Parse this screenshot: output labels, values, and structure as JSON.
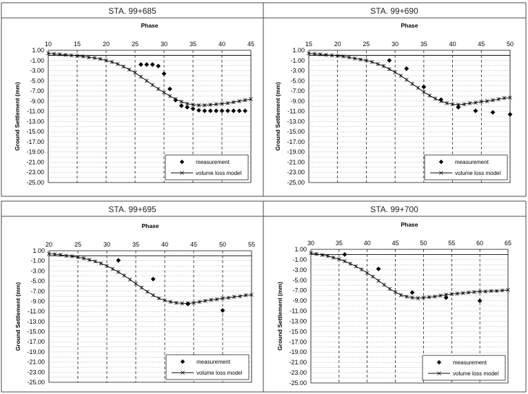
{
  "chart_data": [
    {
      "type": "scatter",
      "title": "STA. 99+685",
      "xlabel": "Phase",
      "ylabel": "Ground Settlement (mm)",
      "xlim": [
        10,
        45
      ],
      "ylim": [
        -25,
        1
      ],
      "xticks": [
        "10",
        "15",
        "20",
        "25",
        "30",
        "35",
        "40",
        "45"
      ],
      "yticks": [
        "1.00",
        "-1.00",
        "-3.00",
        "-5.00",
        "-7.00",
        "-9.00",
        "-11.00",
        "-13.00",
        "-15.00",
        "-17.00",
        "-19.00",
        "-21.00",
        "-23.00",
        "-25.00"
      ],
      "grid": "on",
      "legend_placement": "bottom-right",
      "series": [
        {
          "name": "measurement",
          "marker": "diamond",
          "points": [
            [
              26,
              -1.8
            ],
            [
              27,
              -1.8
            ],
            [
              28,
              -1.8
            ],
            [
              29,
              -2.1
            ],
            [
              30,
              -3.6
            ],
            [
              31,
              -6.6
            ],
            [
              32,
              -8.8
            ],
            [
              33,
              -9.9
            ],
            [
              34,
              -10.2
            ],
            [
              35,
              -10.5
            ],
            [
              36,
              -10.8
            ],
            [
              37,
              -10.9
            ],
            [
              38,
              -10.9
            ],
            [
              39,
              -10.9
            ],
            [
              40,
              -10.9
            ],
            [
              41,
              -10.9
            ],
            [
              42,
              -10.9
            ],
            [
              43,
              -10.9
            ],
            [
              44,
              -10.9
            ]
          ]
        },
        {
          "name": "volume loss model",
          "marker": "star",
          "line": true,
          "points": [
            [
              10,
              0.4
            ],
            [
              11,
              0.3
            ],
            [
              12,
              0.2
            ],
            [
              13,
              0.1
            ],
            [
              14,
              0.0
            ],
            [
              15,
              -0.1
            ],
            [
              16,
              -0.2
            ],
            [
              17,
              -0.4
            ],
            [
              18,
              -0.5
            ],
            [
              19,
              -0.7
            ],
            [
              20,
              -1.0
            ],
            [
              21,
              -1.3
            ],
            [
              22,
              -1.7
            ],
            [
              23,
              -2.2
            ],
            [
              24,
              -2.8
            ],
            [
              25,
              -3.4
            ],
            [
              26,
              -4.2
            ],
            [
              27,
              -5.0
            ],
            [
              28,
              -5.8
            ],
            [
              29,
              -6.6
            ],
            [
              30,
              -7.3
            ],
            [
              31,
              -8.0
            ],
            [
              32,
              -8.6
            ],
            [
              33,
              -9.1
            ],
            [
              34,
              -9.5
            ],
            [
              35,
              -9.7
            ],
            [
              36,
              -9.8
            ],
            [
              37,
              -9.8
            ],
            [
              38,
              -9.7
            ],
            [
              39,
              -9.6
            ],
            [
              40,
              -9.5
            ],
            [
              41,
              -9.4
            ],
            [
              42,
              -9.2
            ],
            [
              43,
              -9.0
            ],
            [
              44,
              -8.8
            ],
            [
              45,
              -8.6
            ]
          ]
        }
      ]
    },
    {
      "type": "scatter",
      "title": "STA. 99+690",
      "xlabel": "Phase",
      "ylabel": "Ground Settlement (mm)",
      "xlim": [
        15,
        50
      ],
      "ylim": [
        -25,
        1
      ],
      "xticks": [
        "15",
        "20",
        "25",
        "30",
        "35",
        "40",
        "45",
        "50"
      ],
      "yticks": [
        "1.00",
        "-1.00",
        "-3.00",
        "-5.00",
        "-7.00",
        "-9.00",
        "-11.00",
        "-13.00",
        "-15.00",
        "-17.00",
        "-19.00",
        "-21.00",
        "-23.00",
        "-25.00"
      ],
      "grid": "on",
      "legend_placement": "bottom-right",
      "series": [
        {
          "name": "measurement",
          "marker": "diamond",
          "points": [
            [
              29,
              -1.0
            ],
            [
              32,
              -2.6
            ],
            [
              35,
              -6.2
            ],
            [
              38,
              -8.7
            ],
            [
              41,
              -10.2
            ],
            [
              44,
              -10.9
            ],
            [
              47,
              -11.2
            ],
            [
              50,
              -11.6
            ]
          ]
        },
        {
          "name": "volume loss model",
          "marker": "star",
          "line": true,
          "points": [
            [
              15,
              0.4
            ],
            [
              16,
              0.3
            ],
            [
              17,
              0.2
            ],
            [
              18,
              0.1
            ],
            [
              19,
              0.0
            ],
            [
              20,
              -0.1
            ],
            [
              21,
              -0.2
            ],
            [
              22,
              -0.4
            ],
            [
              23,
              -0.6
            ],
            [
              24,
              -0.8
            ],
            [
              25,
              -1.0
            ],
            [
              26,
              -1.3
            ],
            [
              27,
              -1.7
            ],
            [
              28,
              -2.1
            ],
            [
              29,
              -2.7
            ],
            [
              30,
              -3.3
            ],
            [
              31,
              -4.0
            ],
            [
              32,
              -4.8
            ],
            [
              33,
              -5.6
            ],
            [
              34,
              -6.4
            ],
            [
              35,
              -7.2
            ],
            [
              36,
              -7.9
            ],
            [
              37,
              -8.5
            ],
            [
              38,
              -9.0
            ],
            [
              39,
              -9.4
            ],
            [
              40,
              -9.6
            ],
            [
              41,
              -9.7
            ],
            [
              42,
              -9.6
            ],
            [
              43,
              -9.4
            ],
            [
              44,
              -9.3
            ],
            [
              45,
              -9.1
            ],
            [
              46,
              -9.0
            ],
            [
              47,
              -8.8
            ],
            [
              48,
              -8.6
            ],
            [
              49,
              -8.4
            ],
            [
              50,
              -8.3
            ]
          ]
        }
      ]
    },
    {
      "type": "scatter",
      "title": "STA. 99+695",
      "xlabel": "Phase",
      "ylabel": "Ground Settlement (mm)",
      "xlim": [
        20,
        55
      ],
      "ylim": [
        -25,
        1
      ],
      "xticks": [
        "20",
        "25",
        "30",
        "35",
        "40",
        "45",
        "50",
        "55"
      ],
      "yticks": [
        "1.00",
        "-1.00",
        "-3.00",
        "-5.00",
        "-7.00",
        "-9.00",
        "-11.00",
        "-13.00",
        "-15.00",
        "-17.00",
        "-19.00",
        "-21.00",
        "-23.00",
        "-25.00"
      ],
      "grid": "on",
      "legend_placement": "bottom-right",
      "series": [
        {
          "name": "measurement",
          "marker": "diamond",
          "points": [
            [
              32,
              -0.9
            ],
            [
              38,
              -4.6
            ],
            [
              44,
              -9.5
            ],
            [
              50,
              -10.8
            ]
          ]
        },
        {
          "name": "volume loss model",
          "marker": "star",
          "line": true,
          "points": [
            [
              20,
              0.4
            ],
            [
              21,
              0.3
            ],
            [
              22,
              0.2
            ],
            [
              23,
              0.0
            ],
            [
              24,
              -0.1
            ],
            [
              25,
              -0.3
            ],
            [
              26,
              -0.5
            ],
            [
              27,
              -0.8
            ],
            [
              28,
              -1.1
            ],
            [
              29,
              -1.5
            ],
            [
              30,
              -2.0
            ],
            [
              31,
              -2.6
            ],
            [
              32,
              -3.2
            ],
            [
              33,
              -3.9
            ],
            [
              34,
              -4.7
            ],
            [
              35,
              -5.5
            ],
            [
              36,
              -6.3
            ],
            [
              37,
              -7.1
            ],
            [
              38,
              -7.8
            ],
            [
              39,
              -8.4
            ],
            [
              40,
              -8.8
            ],
            [
              41,
              -9.1
            ],
            [
              42,
              -9.3
            ],
            [
              43,
              -9.4
            ],
            [
              44,
              -9.4
            ],
            [
              45,
              -9.3
            ],
            [
              46,
              -9.1
            ],
            [
              47,
              -8.9
            ],
            [
              48,
              -8.7
            ],
            [
              49,
              -8.6
            ],
            [
              50,
              -8.4
            ],
            [
              51,
              -8.3
            ],
            [
              52,
              -8.1
            ],
            [
              53,
              -8.0
            ],
            [
              54,
              -7.8
            ],
            [
              55,
              -7.7
            ]
          ]
        }
      ]
    },
    {
      "type": "scatter",
      "title": "STA. 99+700",
      "xlabel": "Phase",
      "ylabel": "Ground Settlement (mm)",
      "xlim": [
        30,
        65
      ],
      "ylim": [
        -25,
        1
      ],
      "xticks": [
        "30",
        "35",
        "40",
        "45",
        "50",
        "55",
        "60",
        "65"
      ],
      "yticks": [
        "1.00",
        "-1.00",
        "-3.00",
        "-5.00",
        "-7.00",
        "-9.00",
        "-11.00",
        "-13.00",
        "-15.00",
        "-17.00",
        "-19.00",
        "-21.00",
        "-23.00",
        "-25.00"
      ],
      "grid": "on",
      "legend_placement": "bottom-right",
      "series": [
        {
          "name": "measurement",
          "marker": "diamond",
          "points": [
            [
              36,
              0.0
            ],
            [
              42,
              -2.8
            ],
            [
              48,
              -7.4
            ],
            [
              54,
              -8.4
            ],
            [
              60,
              -9.0
            ]
          ]
        },
        {
          "name": "volume loss model",
          "marker": "star",
          "line": true,
          "points": [
            [
              30,
              0.3
            ],
            [
              31,
              0.1
            ],
            [
              32,
              -0.1
            ],
            [
              33,
              -0.3
            ],
            [
              34,
              -0.6
            ],
            [
              35,
              -0.9
            ],
            [
              36,
              -1.3
            ],
            [
              37,
              -1.8
            ],
            [
              38,
              -2.3
            ],
            [
              39,
              -2.9
            ],
            [
              40,
              -3.6
            ],
            [
              41,
              -4.3
            ],
            [
              42,
              -5.1
            ],
            [
              43,
              -5.9
            ],
            [
              44,
              -6.7
            ],
            [
              45,
              -7.3
            ],
            [
              46,
              -7.9
            ],
            [
              47,
              -8.2
            ],
            [
              48,
              -8.4
            ],
            [
              49,
              -8.5
            ],
            [
              50,
              -8.4
            ],
            [
              51,
              -8.3
            ],
            [
              52,
              -8.2
            ],
            [
              53,
              -8.0
            ],
            [
              54,
              -7.8
            ],
            [
              55,
              -7.7
            ],
            [
              56,
              -7.6
            ],
            [
              57,
              -7.5
            ],
            [
              58,
              -7.4
            ],
            [
              59,
              -7.3
            ],
            [
              60,
              -7.2
            ],
            [
              61,
              -7.2
            ],
            [
              62,
              -7.1
            ],
            [
              63,
              -7.1
            ],
            [
              64,
              -7.0
            ],
            [
              65,
              -6.9
            ]
          ]
        }
      ]
    }
  ]
}
